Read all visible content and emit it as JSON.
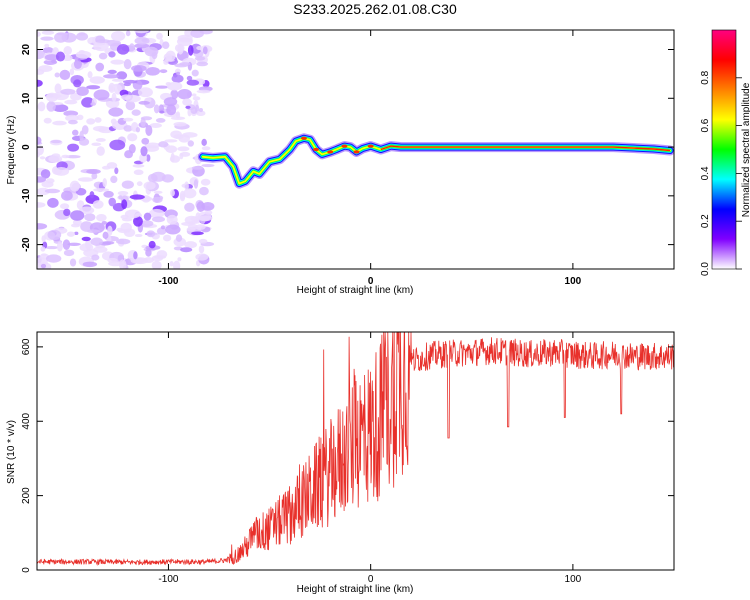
{
  "title": "S233.2025.262.01.08.C30",
  "chart_data": [
    {
      "type": "heatmap",
      "xlabel": "Height of straight line (km)",
      "ylabel": "Frequency (Hz)",
      "xlim": [
        -165,
        150
      ],
      "ylim": [
        -25,
        24
      ],
      "x_ticks": [
        -100,
        0,
        100
      ],
      "x_tick_labels": [
        "-100",
        "0",
        "100"
      ],
      "y_ticks": [
        -20,
        -10,
        0,
        10,
        20
      ],
      "y_tick_labels": [
        "-20",
        "-10",
        "0",
        "10",
        "20"
      ],
      "noise_region_x": [
        -165,
        -80
      ],
      "ridge": {
        "x": [
          -83,
          -78,
          -72,
          -68,
          -65,
          -62,
          -58,
          -55,
          -50,
          -45,
          -40,
          -37,
          -33,
          -30,
          -27,
          -24,
          -20,
          -17,
          -13,
          -10,
          -7,
          -4,
          0,
          5,
          10,
          15,
          20,
          40,
          60,
          80,
          100,
          120,
          140,
          148
        ],
        "freq_hz": [
          -2,
          -2.2,
          -2,
          -4,
          -7.5,
          -7,
          -5,
          -5.5,
          -3,
          -2.5,
          -0.5,
          1.2,
          1.8,
          1.5,
          -0.5,
          -1.5,
          -1,
          -0.5,
          0.2,
          0,
          -1,
          -0.3,
          0.2,
          -0.5,
          0.2,
          0,
          0,
          0,
          0,
          0,
          0,
          0,
          -0.4,
          -0.7
        ]
      },
      "colorbar": {
        "label": "Normalized spectral amplitude",
        "range": [
          0.0,
          1.0
        ],
        "ticks": [
          0.0,
          0.2,
          0.4,
          0.6,
          0.8
        ],
        "tick_labels": [
          "0.0",
          "0.2",
          "0.4",
          "0.6",
          "0.8"
        ],
        "colors": [
          "#ffffff",
          "#8000ff",
          "#0000ff",
          "#00ffff",
          "#00ff00",
          "#ffff00",
          "#ff8000",
          "#ff0000",
          "#ff0080"
        ]
      }
    },
    {
      "type": "line",
      "xlabel": "Height of straight line (km)",
      "ylabel": "SNR (10 * v/v)",
      "xlim": [
        -165,
        150
      ],
      "ylim": [
        0,
        640
      ],
      "x_ticks": [
        -100,
        0,
        100
      ],
      "x_tick_labels": [
        "-100",
        "0",
        "100"
      ],
      "y_ticks": [
        0,
        200,
        400,
        600
      ],
      "y_tick_labels": [
        "0",
        "200",
        "400",
        "600"
      ],
      "series": [
        {
          "name": "SNR",
          "color": "#e8302b",
          "x": [
            -165,
            -140,
            -120,
            -100,
            -80,
            -72,
            -66,
            -62,
            -58,
            -55,
            -50,
            -45,
            -40,
            -35,
            -30,
            -25,
            -20,
            -15,
            -10,
            -5,
            0,
            5,
            10,
            15,
            20,
            25,
            30,
            40,
            50,
            60,
            70,
            80,
            90,
            100,
            110,
            120,
            130,
            140,
            150
          ],
          "y": [
            22,
            22,
            21,
            22,
            22,
            26,
            40,
            60,
            90,
            100,
            110,
            130,
            150,
            175,
            205,
            235,
            260,
            295,
            325,
            355,
            370,
            410,
            470,
            545,
            560,
            570,
            578,
            582,
            585,
            590,
            585,
            580,
            585,
            580,
            575,
            580,
            575,
            575,
            575
          ]
        }
      ],
      "dips": [
        {
          "x": 38.5,
          "y": 355
        },
        {
          "x": 68,
          "y": 385
        },
        {
          "x": 96,
          "y": 410
        },
        {
          "x": 124,
          "y": 420
        }
      ]
    }
  ]
}
